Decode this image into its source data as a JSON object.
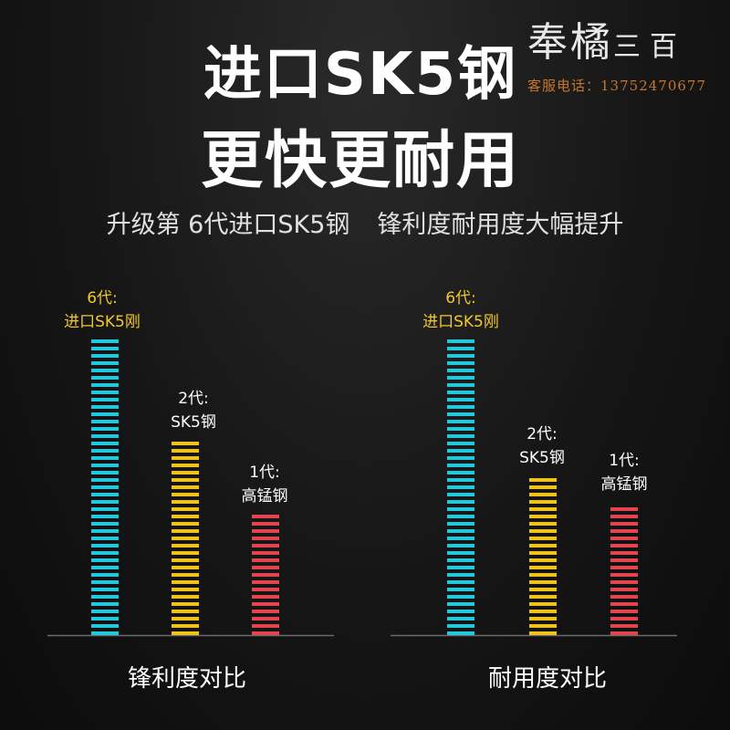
{
  "header": {
    "title_line1": "进口SK5钢",
    "title_line2": "更快更耐用",
    "subtitle_part1": "升级第 6代进口SK5钢",
    "subtitle_part2": "锋利度耐用度大幅提升"
  },
  "watermark": {
    "shop_name": "奉橘",
    "shop_name_small": "三百",
    "service_label": "客服电话：",
    "phone": "13752470677"
  },
  "colors": {
    "cyan": "#22c9dc",
    "yellow": "#f0c21c",
    "red": "#e4444e",
    "label_gold": "#f2c82a",
    "label_white": "#ffffff"
  },
  "chart_data": [
    {
      "type": "bar",
      "title": "",
      "xlabel": "锋利度对比",
      "ylabel": "",
      "ylim": [
        0,
        100
      ],
      "grid": false,
      "categories": [
        {
          "line1": "6代:",
          "line2": "进口SK5刚"
        },
        {
          "line1": "2代:",
          "line2": "SK5钢"
        },
        {
          "line1": "1代:",
          "line2": "高锰钢"
        }
      ],
      "values": [
        100,
        66,
        41
      ]
    },
    {
      "type": "bar",
      "title": "",
      "xlabel": "耐用度对比",
      "ylabel": "",
      "ylim": [
        0,
        100
      ],
      "grid": false,
      "categories": [
        {
          "line1": "6代:",
          "line2": "进口SK5刚"
        },
        {
          "line1": "2代:",
          "line2": "SK5钢"
        },
        {
          "line1": "1代:",
          "line2": "高锰钢"
        }
      ],
      "values": [
        100,
        54,
        45
      ]
    }
  ]
}
